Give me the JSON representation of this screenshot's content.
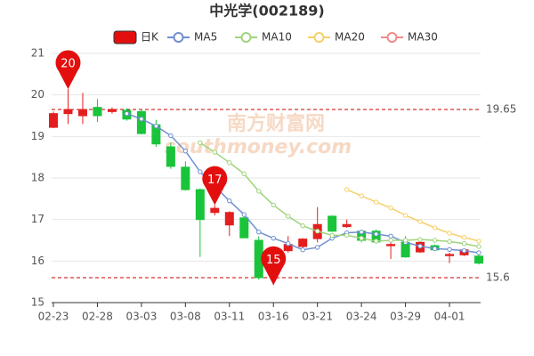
{
  "chart_data": {
    "type": "candlestick",
    "title": "中光学(002189)",
    "watermark": [
      "南方财富网",
      "southmoney.com"
    ],
    "categories": [
      "02-23",
      null,
      null,
      "02-28",
      null,
      null,
      "03-03",
      null,
      null,
      "03-08",
      null,
      null,
      "03-11",
      null,
      null,
      "03-16",
      null,
      null,
      "03-21",
      null,
      null,
      "03-24",
      null,
      null,
      "03-29",
      null,
      null,
      "04-01",
      null,
      null
    ],
    "candles": {
      "name": "日K",
      "up_color": "#e41e1e",
      "down_color": "#19c43a",
      "open": [
        19.22,
        19.55,
        19.5,
        19.7,
        19.6,
        19.63,
        19.6,
        19.28,
        18.75,
        18.26,
        17.72,
        17.17,
        16.87,
        17.04,
        16.5,
        15.7,
        16.25,
        16.35,
        16.54,
        17.08,
        16.83,
        16.72,
        16.72,
        16.37,
        16.45,
        16.22,
        16.37,
        16.13,
        16.15,
        16.12
      ],
      "close": [
        19.55,
        19.65,
        19.65,
        19.5,
        19.65,
        19.42,
        19.07,
        18.82,
        18.28,
        17.72,
        17.0,
        17.27,
        17.17,
        16.56,
        15.6,
        15.8,
        16.4,
        16.53,
        16.88,
        16.72,
        16.88,
        16.5,
        16.46,
        16.4,
        16.1,
        16.45,
        16.27,
        16.16,
        16.27,
        15.95
      ],
      "high": [
        19.6,
        20.14,
        20.05,
        19.9,
        19.7,
        19.68,
        19.65,
        19.4,
        18.85,
        18.4,
        17.75,
        17.35,
        17.2,
        17.1,
        16.6,
        16.0,
        16.6,
        16.55,
        17.3,
        17.1,
        17.0,
        16.75,
        16.76,
        16.5,
        16.6,
        16.5,
        16.4,
        16.2,
        16.28,
        16.15
      ],
      "low": [
        19.2,
        19.3,
        19.3,
        19.35,
        19.55,
        19.38,
        19.05,
        18.75,
        18.22,
        17.7,
        16.1,
        17.1,
        16.6,
        16.55,
        15.55,
        15.42,
        16.2,
        16.3,
        16.45,
        16.7,
        16.8,
        16.45,
        16.42,
        16.05,
        16.08,
        16.2,
        16.25,
        15.95,
        16.12,
        15.92
      ]
    },
    "series": [
      {
        "name": "MA5",
        "color": "#6f8fd0",
        "values": [
          null,
          null,
          null,
          null,
          null,
          19.55,
          19.42,
          19.25,
          19.02,
          18.65,
          18.15,
          17.8,
          17.45,
          17.12,
          16.7,
          16.55,
          16.42,
          16.27,
          16.33,
          16.55,
          16.68,
          16.7,
          16.65,
          16.6,
          16.45,
          16.36,
          16.3,
          16.28,
          16.25,
          16.2
        ]
      },
      {
        "name": "MA10",
        "color": "#9fd47c",
        "values": [
          null,
          null,
          null,
          null,
          null,
          null,
          null,
          null,
          null,
          null,
          18.85,
          18.62,
          18.37,
          18.1,
          17.68,
          17.35,
          17.08,
          16.85,
          16.72,
          16.62,
          16.62,
          16.55,
          16.48,
          16.5,
          16.5,
          16.52,
          16.5,
          16.47,
          16.42,
          16.35
        ]
      },
      {
        "name": "MA20",
        "color": "#f5d067",
        "values": [
          null,
          null,
          null,
          null,
          null,
          null,
          null,
          null,
          null,
          null,
          null,
          null,
          null,
          null,
          null,
          null,
          null,
          null,
          null,
          null,
          17.72,
          17.57,
          17.42,
          17.28,
          17.1,
          16.95,
          16.8,
          16.67,
          16.57,
          16.48
        ]
      },
      {
        "name": "MA30",
        "color": "#f08a8a",
        "values": [
          null,
          null,
          null,
          null,
          null,
          null,
          null,
          null,
          null,
          null,
          null,
          null,
          null,
          null,
          null,
          null,
          null,
          null,
          null,
          null,
          null,
          null,
          null,
          null,
          null,
          null,
          null,
          null,
          null,
          null
        ]
      }
    ],
    "mark_points": [
      {
        "index": 1,
        "value": 20.14,
        "label": "20"
      },
      {
        "index": 11,
        "value": 17.35,
        "label": "17"
      },
      {
        "index": 15,
        "value": 15.42,
        "label": "15"
      }
    ],
    "ref_lines": [
      {
        "value": 19.65,
        "label": "19.65"
      },
      {
        "value": 15.6,
        "label": "15.6"
      }
    ],
    "ylim": [
      15,
      21
    ],
    "yticks": [
      15,
      16,
      17,
      18,
      19,
      20,
      21
    ],
    "grid": true
  }
}
